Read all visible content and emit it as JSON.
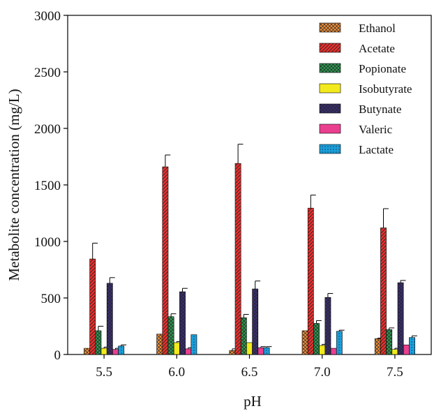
{
  "chart_data": {
    "type": "bar",
    "xlabel": "pH",
    "ylabel": "Metabolite concentration (mg/L)",
    "ylim": [
      0,
      3000
    ],
    "yticks": [
      "0",
      "500",
      "1000",
      "1500",
      "2000",
      "2500",
      "3000"
    ],
    "categories": [
      "5.5",
      "6.0",
      "6.5",
      "7.0",
      "7.5"
    ],
    "legend_position": "top-right",
    "grid": false,
    "series": [
      {
        "name": "Ethanol",
        "color": "#f0913c",
        "pattern": "crosshatch",
        "values": [
          55,
          180,
          35,
          210,
          140
        ],
        "errors": [
          0,
          0,
          15,
          0,
          5
        ]
      },
      {
        "name": "Acetate",
        "color": "#e8302e",
        "pattern": "diagonal",
        "values": [
          845,
          1660,
          1690,
          1295,
          1120
        ],
        "errors": [
          140,
          105,
          170,
          115,
          170
        ]
      },
      {
        "name": "Popionate",
        "color": "#2e9a52",
        "pattern": "crosshatch",
        "values": [
          210,
          335,
          325,
          275,
          220
        ],
        "errors": [
          40,
          25,
          30,
          25,
          15
        ]
      },
      {
        "name": "Isobutyrate",
        "color": "#f2ea1c",
        "pattern": "solid",
        "values": [
          55,
          105,
          105,
          80,
          45
        ],
        "errors": [
          10,
          10,
          0,
          10,
          10
        ]
      },
      {
        "name": "Butynate",
        "color": "#3a2f73",
        "pattern": "crosshatch",
        "values": [
          630,
          555,
          580,
          505,
          635
        ],
        "errors": [
          50,
          30,
          70,
          35,
          20
        ]
      },
      {
        "name": "Valeric",
        "color": "#ea3f8e",
        "pattern": "solid",
        "values": [
          45,
          50,
          60,
          55,
          85
        ],
        "errors": [
          10,
          10,
          10,
          0,
          0
        ]
      },
      {
        "name": "Lactate",
        "color": "#1a9fd8",
        "pattern": "dots",
        "values": [
          75,
          175,
          60,
          205,
          150
        ],
        "errors": [
          10,
          0,
          10,
          10,
          15
        ]
      }
    ]
  }
}
